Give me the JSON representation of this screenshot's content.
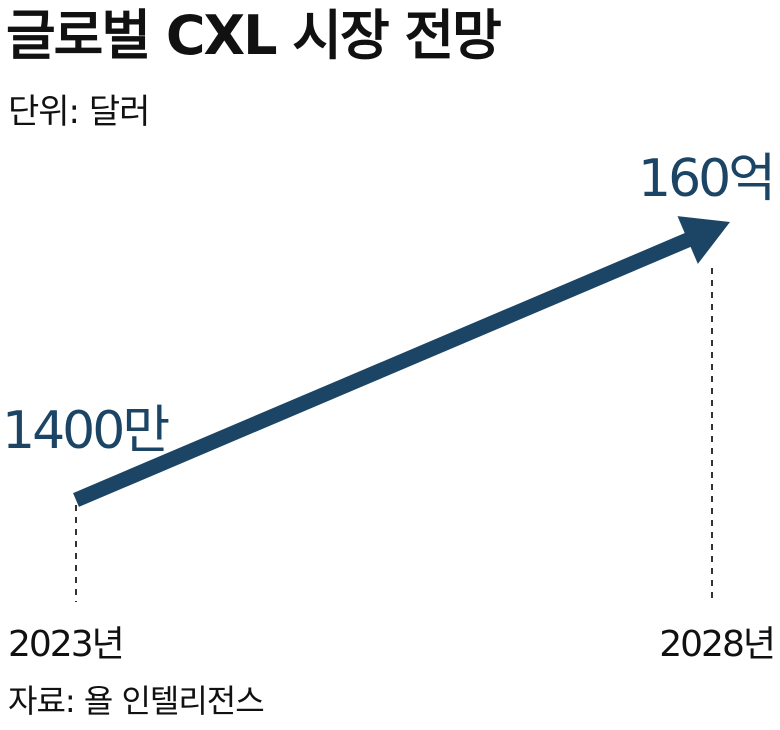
{
  "header": {
    "title": "글로벌 CXL 시장 전망",
    "unit": "단위: 달러"
  },
  "footer": {
    "source": "자료: 욜 인텔리전스"
  },
  "colors": {
    "series": "#1c4565",
    "text": "#111111",
    "guide": "#333333"
  },
  "chart_data": {
    "type": "line",
    "categories": [
      "2023년",
      "2028년"
    ],
    "series": [
      {
        "values": [
          14000000,
          16000000000
        ],
        "data_labels": [
          "1400만",
          "160억"
        ]
      }
    ],
    "ylabel": "",
    "xlabel": "",
    "grid": false,
    "legend": "none"
  }
}
